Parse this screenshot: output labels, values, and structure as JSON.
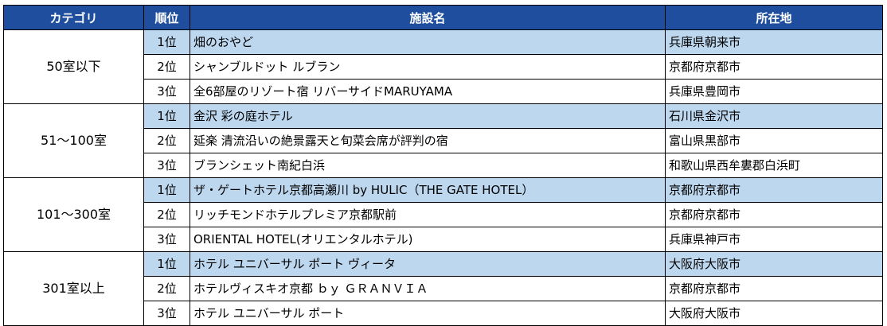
{
  "headers": {
    "category": "カテゴリ",
    "rank": "順位",
    "name": "施設名",
    "location": "所在地"
  },
  "groups": [
    {
      "category": "50室以下",
      "rows": [
        {
          "rank": "1位",
          "name": "畑のおやど",
          "location": "兵庫県朝来市"
        },
        {
          "rank": "2位",
          "name": "シャンブルドット ルブラン",
          "location": "京都府京都市"
        },
        {
          "rank": "3位",
          "name": "全6部屋のリゾート宿 リバーサイドMARUYAMA",
          "location": "兵庫県豊岡市"
        }
      ]
    },
    {
      "category": "51～100室",
      "rows": [
        {
          "rank": "1位",
          "name": "金沢 彩の庭ホテル",
          "location": "石川県金沢市"
        },
        {
          "rank": "2位",
          "name": "延楽 清流沿いの絶景露天と旬菜会席が評判の宿",
          "location": "富山県黒部市"
        },
        {
          "rank": "3位",
          "name": "ブランシェット南紀白浜",
          "location": "和歌山県西牟婁郡白浜町"
        }
      ]
    },
    {
      "category": "101～300室",
      "rows": [
        {
          "rank": "1位",
          "name": "ザ・ゲートホテル京都高瀬川 by HULIC（THE GATE HOTEL）",
          "location": "京都府京都市"
        },
        {
          "rank": "2位",
          "name": "リッチモンドホテルプレミア京都駅前",
          "location": "京都府京都市"
        },
        {
          "rank": "3位",
          "name": "ORIENTAL HOTEL(オリエンタルホテル)",
          "location": "兵庫県神戸市"
        }
      ]
    },
    {
      "category": "301室以上",
      "rows": [
        {
          "rank": "1位",
          "name": "ホテル ユニバーサル ポート ヴィータ",
          "location": "大阪府大阪市"
        },
        {
          "rank": "2位",
          "name": "ホテルヴィスキオ京都 ｂｙ ＧＲＡＮＶＩＡ",
          "location": "京都府京都市"
        },
        {
          "rank": "3位",
          "name": "ホテル ユニバーサル ポート",
          "location": "大阪府大阪市"
        }
      ]
    }
  ]
}
